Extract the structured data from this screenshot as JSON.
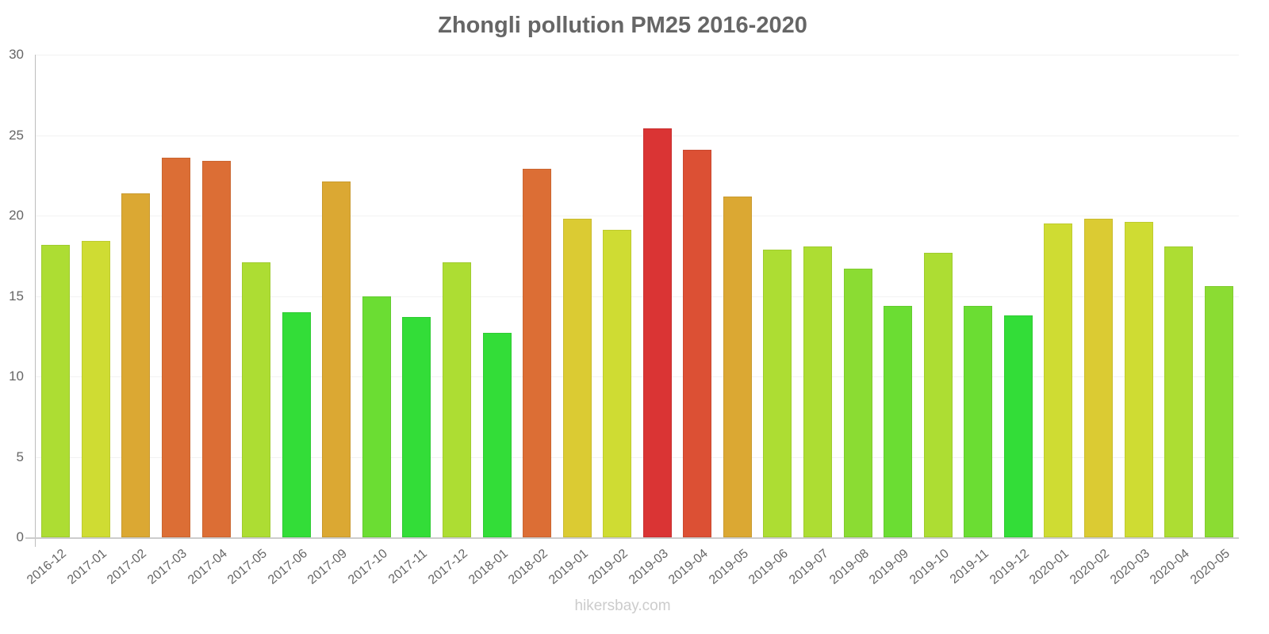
{
  "chart_data": {
    "type": "bar",
    "title": "Zhongli pollution PM25 2016-2020",
    "xlabel": "",
    "ylabel": "",
    "ylim": [
      0,
      30
    ],
    "yticks": [
      0,
      5,
      10,
      15,
      20,
      25,
      30
    ],
    "grid": true,
    "legend": null,
    "categories": [
      "2016-12",
      "2017-01",
      "2017-02",
      "2017-03",
      "2017-04",
      "2017-05",
      "2017-06",
      "2017-09",
      "2017-10",
      "2017-11",
      "2017-12",
      "2018-01",
      "2018-02",
      "2019-01",
      "2019-02",
      "2019-03",
      "2019-04",
      "2019-05",
      "2019-06",
      "2019-07",
      "2019-08",
      "2019-09",
      "2019-10",
      "2019-11",
      "2019-12",
      "2020-01",
      "2020-02",
      "2020-03",
      "2020-04",
      "2020-05"
    ],
    "values": [
      18.2,
      18.4,
      21.4,
      23.6,
      23.4,
      17.1,
      14.0,
      22.1,
      15.0,
      13.7,
      17.1,
      12.7,
      22.9,
      19.8,
      19.1,
      25.4,
      24.1,
      21.2,
      17.9,
      18.1,
      16.7,
      14.4,
      17.7,
      14.4,
      13.8,
      19.5,
      19.8,
      19.6,
      18.1,
      15.6
    ],
    "colors": [
      "#addd33",
      "#cfdc33",
      "#dba833",
      "#dc6e35",
      "#dc6e35",
      "#addd33",
      "#33dd38",
      "#dba833",
      "#6bdd33",
      "#33dd38",
      "#addd33",
      "#33dd38",
      "#dc6e35",
      "#dbcb33",
      "#cfdc33",
      "#da3434",
      "#dc5034",
      "#dba833",
      "#addd33",
      "#addd33",
      "#8bdc33",
      "#6bdd33",
      "#addd33",
      "#6bdd33",
      "#33dd38",
      "#cfdc33",
      "#dbcb33",
      "#cfdc33",
      "#addd33",
      "#8bdc33"
    ]
  },
  "watermark": "hikersbay.com"
}
